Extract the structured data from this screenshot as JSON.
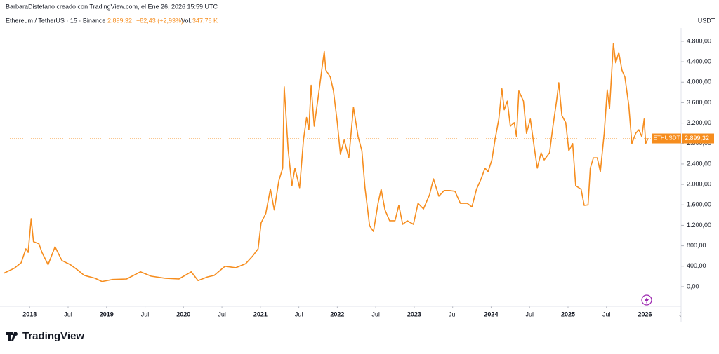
{
  "header": {
    "credit": "BarbaraDistefano creado con TradingView.com, el Ene 26, 2026 15:59 UTC",
    "symbol": "Ethereum / TetherUS · 15 · Binance",
    "change": "+82,43 (+2,93%)",
    "volume_label": "Vol.",
    "volume": "347,76 K",
    "currency": "USDT",
    "brand": "TradingView"
  },
  "chart_data": {
    "type": "line",
    "x": [
      2017.66,
      2017.8,
      2017.89,
      2017.95,
      2017.98,
      2018.02,
      2018.05,
      2018.12,
      2018.16,
      2018.24,
      2018.33,
      2018.42,
      2018.53,
      2018.62,
      2018.71,
      2018.85,
      2018.94,
      2019.08,
      2019.26,
      2019.44,
      2019.58,
      2019.76,
      2019.94,
      2020.1,
      2020.19,
      2020.31,
      2020.4,
      2020.54,
      2020.68,
      2020.81,
      2020.9,
      2020.97,
      2021.01,
      2021.07,
      2021.13,
      2021.18,
      2021.24,
      2021.29,
      2021.31,
      2021.36,
      2021.41,
      2021.45,
      2021.51,
      2021.56,
      2021.6,
      2021.63,
      2021.66,
      2021.7,
      2021.75,
      2021.8,
      2021.83,
      2021.85,
      2021.91,
      2021.95,
      2022.0,
      2022.04,
      2022.09,
      2022.15,
      2022.21,
      2022.27,
      2022.32,
      2022.36,
      2022.42,
      2022.47,
      2022.53,
      2022.57,
      2022.62,
      2022.68,
      2022.75,
      2022.8,
      2022.85,
      2022.91,
      2022.99,
      2023.05,
      2023.12,
      2023.2,
      2023.25,
      2023.32,
      2023.39,
      2023.46,
      2023.53,
      2023.6,
      2023.69,
      2023.75,
      2023.81,
      2023.87,
      2023.92,
      2023.96,
      2024.01,
      2024.05,
      2024.1,
      2024.14,
      2024.17,
      2024.21,
      2024.25,
      2024.3,
      2024.33,
      2024.36,
      2024.42,
      2024.46,
      2024.51,
      2024.56,
      2024.6,
      2024.65,
      2024.69,
      2024.76,
      2024.8,
      2024.85,
      2024.88,
      2024.92,
      2024.97,
      2025.01,
      2025.06,
      2025.1,
      2025.17,
      2025.21,
      2025.26,
      2025.29,
      2025.33,
      2025.38,
      2025.42,
      2025.47,
      2025.51,
      2025.54,
      2025.59,
      2025.62,
      2025.66,
      2025.7,
      2025.74,
      2025.79,
      2025.83,
      2025.88,
      2025.92,
      2025.96,
      2025.99,
      2026.01,
      2026.04
    ],
    "series": [
      {
        "name": "ETHUSDT",
        "color": "#f68d1e",
        "values": [
          260,
          360,
          470,
          740,
          670,
          1330,
          880,
          840,
          670,
          430,
          780,
          510,
          430,
          330,
          220,
          165,
          100,
          140,
          150,
          290,
          205,
          165,
          150,
          290,
          120,
          190,
          220,
          400,
          370,
          450,
          600,
          740,
          1250,
          1430,
          1910,
          1500,
          2070,
          2320,
          3910,
          2690,
          1975,
          2320,
          1935,
          2870,
          3310,
          3070,
          3940,
          3140,
          3690,
          4270,
          4600,
          4240,
          4100,
          3830,
          3210,
          2590,
          2870,
          2520,
          3510,
          2935,
          2660,
          1935,
          1190,
          1080,
          1630,
          1905,
          1500,
          1290,
          1290,
          1590,
          1220,
          1290,
          1220,
          1630,
          1520,
          1800,
          2110,
          1770,
          1880,
          1880,
          1865,
          1630,
          1630,
          1560,
          1905,
          2110,
          2320,
          2250,
          2480,
          2870,
          3280,
          3870,
          3460,
          3630,
          3140,
          3210,
          2935,
          3830,
          3630,
          3000,
          3280,
          2730,
          2320,
          2620,
          2480,
          2620,
          3100,
          3630,
          3990,
          3350,
          3210,
          2660,
          2800,
          1975,
          1905,
          1590,
          1600,
          2320,
          2520,
          2520,
          2250,
          3000,
          3850,
          3480,
          4760,
          4380,
          4580,
          4240,
          4100,
          3550,
          2800,
          3000,
          3070,
          2935,
          3280,
          2800,
          2899.32
        ]
      }
    ],
    "last_price": {
      "value": 2899.32,
      "label": "2.899,32"
    },
    "xlim": [
      2017.66,
      2026.47
    ],
    "ylim": [
      -385,
      4950
    ],
    "xticks": [
      2018,
      {
        "value": 2018.5,
        "label": "Jul"
      },
      2019,
      {
        "value": 2019.5,
        "label": "Jul"
      },
      2020,
      {
        "value": 2020.5,
        "label": "Jul"
      },
      2021,
      {
        "value": 2021.5,
        "label": "Jul"
      },
      2022,
      {
        "value": 2022.5,
        "label": "Jul"
      },
      2023,
      {
        "value": 2023.5,
        "label": "Jul"
      },
      2024,
      {
        "value": 2024.5,
        "label": "Jul"
      },
      2025,
      {
        "value": 2025.5,
        "label": "Jul"
      },
      2026,
      {
        "value": 2026.5,
        "label": "Jul"
      }
    ],
    "yticks": [
      {
        "value": 0,
        "label": "0,00"
      },
      {
        "value": 400,
        "label": "400,00"
      },
      {
        "value": 800,
        "label": "800,00"
      },
      {
        "value": 1200,
        "label": "1.200,00"
      },
      {
        "value": 1600,
        "label": "1.600,00"
      },
      {
        "value": 2000,
        "label": "2.000,00"
      },
      {
        "value": 2400,
        "label": "2.400,00"
      },
      {
        "value": 2800,
        "label": "2.800,00"
      },
      {
        "value": 3200,
        "label": "3.200,00"
      },
      {
        "value": 3600,
        "label": "3.600,00"
      },
      {
        "value": 4000,
        "label": "4.000,00"
      },
      {
        "value": 4400,
        "label": "4.400,00"
      },
      {
        "value": 4800,
        "label": "4.800,00"
      }
    ]
  }
}
